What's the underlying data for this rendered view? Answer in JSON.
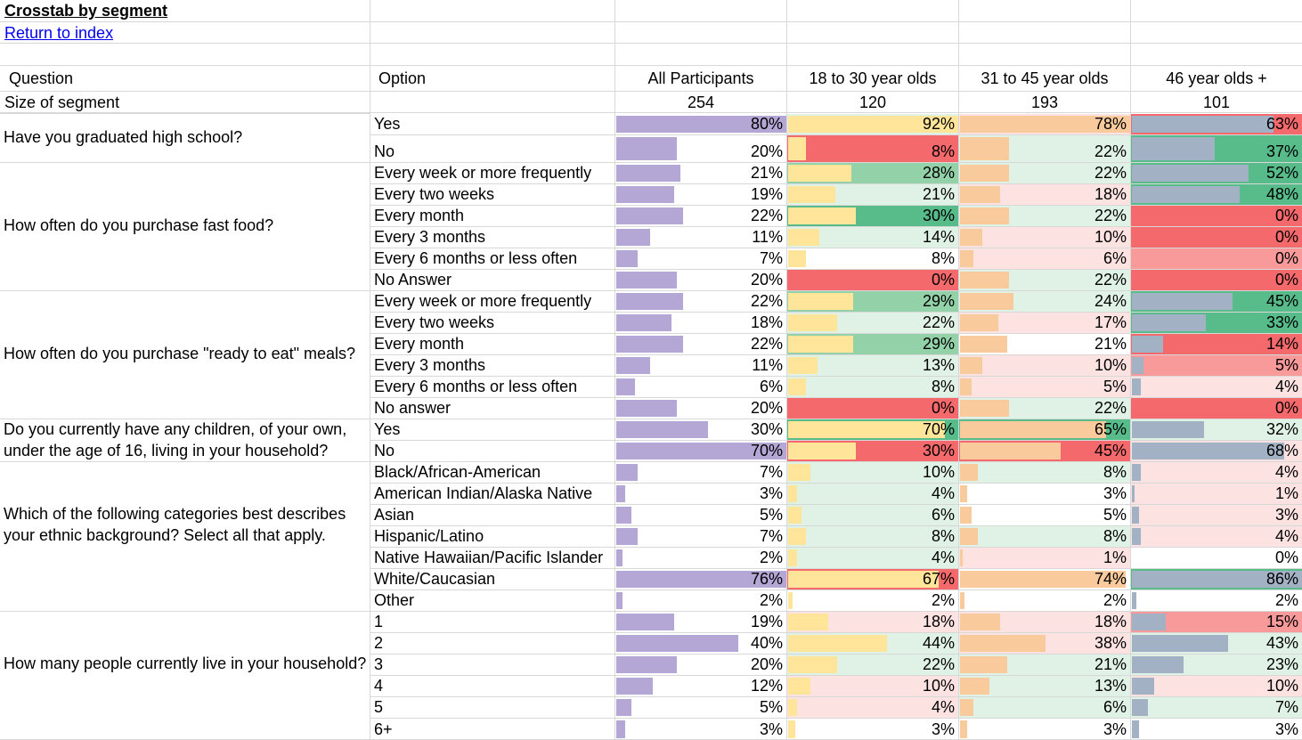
{
  "title": "Crosstab by segment",
  "link": "Return to index",
  "headers": {
    "question": "Question",
    "option": "Option",
    "segments": [
      "All Participants",
      "18 to 30 year olds",
      "31 to 45 year olds",
      "46 year olds +"
    ]
  },
  "size": {
    "label": "Size of segment",
    "values": [
      "254",
      "120",
      "193",
      "101"
    ]
  },
  "colors": {
    "bars": [
      "#b4a7d6",
      "#ffe599",
      "#f9cb9c",
      "#a2b1c4"
    ],
    "heat": {
      "green_strong": "#57bb8a",
      "green_mid": "#93d1a8",
      "green_light": "#dff2e5",
      "neutral": "#ffffff",
      "red_light": "#fde2e2",
      "red_mid": "#f99a9a",
      "red_strong": "#f4696b"
    }
  },
  "questions": [
    {
      "text": "Have you graduated high school?",
      "options": [
        {
          "label": "Yes",
          "values": [
            "80%",
            "92%",
            "78%",
            "63%"
          ],
          "pct": [
            80,
            92,
            78,
            63
          ],
          "heat": [
            "neutral",
            "green_light",
            "red_light",
            "red_strong"
          ]
        },
        {
          "label": "No",
          "values": [
            "20%",
            "8%",
            "22%",
            "37%"
          ],
          "pct": [
            20,
            8,
            22,
            37
          ],
          "heat": [
            "neutral",
            "red_strong",
            "green_light",
            "green_strong"
          ]
        }
      ]
    },
    {
      "text": "How often do you purchase fast food?",
      "options": [
        {
          "label": "Every week or more frequently",
          "values": [
            "21%",
            "28%",
            "22%",
            "52%"
          ],
          "pct": [
            21,
            28,
            22,
            52
          ],
          "heat": [
            "neutral",
            "green_mid",
            "green_light",
            "green_strong"
          ]
        },
        {
          "label": "Every two weeks",
          "values": [
            "19%",
            "21%",
            "18%",
            "48%"
          ],
          "pct": [
            19,
            21,
            18,
            48
          ],
          "heat": [
            "neutral",
            "green_light",
            "red_light",
            "green_strong"
          ]
        },
        {
          "label": "Every month",
          "values": [
            "22%",
            "30%",
            "22%",
            "0%"
          ],
          "pct": [
            22,
            30,
            22,
            0
          ],
          "heat": [
            "neutral",
            "green_strong",
            "green_light",
            "red_strong"
          ]
        },
        {
          "label": "Every 3 months",
          "values": [
            "11%",
            "14%",
            "10%",
            "0%"
          ],
          "pct": [
            11,
            14,
            10,
            0
          ],
          "heat": [
            "neutral",
            "green_light",
            "red_light",
            "red_strong"
          ]
        },
        {
          "label": "Every 6 months or less often",
          "values": [
            "7%",
            "8%",
            "6%",
            "0%"
          ],
          "pct": [
            7,
            8,
            6,
            0
          ],
          "heat": [
            "neutral",
            "neutral",
            "red_light",
            "red_mid"
          ]
        },
        {
          "label": "No Answer",
          "values": [
            "20%",
            "0%",
            "22%",
            "0%"
          ],
          "pct": [
            20,
            0,
            22,
            0
          ],
          "heat": [
            "neutral",
            "red_strong",
            "green_light",
            "red_strong"
          ]
        }
      ]
    },
    {
      "text": "How often do you purchase \"ready to eat\" meals?",
      "options": [
        {
          "label": "Every week or more frequently",
          "values": [
            "22%",
            "29%",
            "24%",
            "45%"
          ],
          "pct": [
            22,
            29,
            24,
            45
          ],
          "heat": [
            "neutral",
            "green_mid",
            "green_light",
            "green_strong"
          ]
        },
        {
          "label": "Every two weeks",
          "values": [
            "18%",
            "22%",
            "17%",
            "33%"
          ],
          "pct": [
            18,
            22,
            17,
            33
          ],
          "heat": [
            "neutral",
            "green_light",
            "red_light",
            "green_strong"
          ]
        },
        {
          "label": "Every month",
          "values": [
            "22%",
            "29%",
            "21%",
            "14%"
          ],
          "pct": [
            22,
            29,
            21,
            14
          ],
          "heat": [
            "neutral",
            "green_mid",
            "neutral",
            "red_strong"
          ]
        },
        {
          "label": "Every 3 months",
          "values": [
            "11%",
            "13%",
            "10%",
            "5%"
          ],
          "pct": [
            11,
            13,
            10,
            5
          ],
          "heat": [
            "neutral",
            "green_light",
            "red_light",
            "red_mid"
          ]
        },
        {
          "label": "Every 6 months or less often",
          "values": [
            "6%",
            "8%",
            "5%",
            "4%"
          ],
          "pct": [
            6,
            8,
            5,
            4
          ],
          "heat": [
            "neutral",
            "green_light",
            "red_light",
            "red_light"
          ]
        },
        {
          "label": "No answer",
          "values": [
            "20%",
            "0%",
            "22%",
            "0%"
          ],
          "pct": [
            20,
            0,
            22,
            0
          ],
          "heat": [
            "neutral",
            "red_strong",
            "green_light",
            "red_strong"
          ]
        }
      ]
    },
    {
      "text": "Do you currently have any children, of your own, under the age of 16, living in your household?",
      "options": [
        {
          "label": "Yes",
          "values": [
            "30%",
            "70%",
            "65%",
            "32%"
          ],
          "pct": [
            30,
            70,
            65,
            32
          ],
          "heat": [
            "neutral",
            "green_strong",
            "green_strong",
            "green_light"
          ]
        },
        {
          "label": "No",
          "values": [
            "70%",
            "30%",
            "45%",
            "68%"
          ],
          "pct": [
            70,
            30,
            45,
            68
          ],
          "heat": [
            "neutral",
            "red_strong",
            "red_strong",
            "red_light"
          ]
        }
      ]
    },
    {
      "text": "Which of the following categories best describes your ethnic background? Select all that apply.",
      "options": [
        {
          "label": "Black/African-American",
          "values": [
            "7%",
            "10%",
            "8%",
            "4%"
          ],
          "pct": [
            7,
            10,
            8,
            4
          ],
          "heat": [
            "neutral",
            "green_light",
            "green_light",
            "red_light"
          ]
        },
        {
          "label": "American Indian/Alaska Native",
          "values": [
            "3%",
            "4%",
            "3%",
            "1%"
          ],
          "pct": [
            3,
            4,
            3,
            1
          ],
          "heat": [
            "neutral",
            "green_light",
            "neutral",
            "red_light"
          ]
        },
        {
          "label": "Asian",
          "values": [
            "5%",
            "6%",
            "5%",
            "3%"
          ],
          "pct": [
            5,
            6,
            5,
            3
          ],
          "heat": [
            "neutral",
            "green_light",
            "neutral",
            "red_light"
          ]
        },
        {
          "label": "Hispanic/Latino",
          "values": [
            "7%",
            "8%",
            "8%",
            "4%"
          ],
          "pct": [
            7,
            8,
            8,
            4
          ],
          "heat": [
            "neutral",
            "green_light",
            "green_light",
            "red_light"
          ]
        },
        {
          "label": "Native Hawaiian/Pacific Islander",
          "values": [
            "2%",
            "4%",
            "1%",
            "0%"
          ],
          "pct": [
            2,
            4,
            1,
            0
          ],
          "heat": [
            "neutral",
            "green_light",
            "red_light",
            "neutral"
          ]
        },
        {
          "label": "White/Caucasian",
          "values": [
            "76%",
            "67%",
            "74%",
            "86%"
          ],
          "pct": [
            76,
            67,
            74,
            86
          ],
          "heat": [
            "neutral",
            "red_strong",
            "neutral",
            "green_strong"
          ]
        },
        {
          "label": "Other",
          "values": [
            "2%",
            "2%",
            "2%",
            "2%"
          ],
          "pct": [
            2,
            2,
            2,
            2
          ],
          "heat": [
            "neutral",
            "neutral",
            "neutral",
            "neutral"
          ]
        }
      ]
    },
    {
      "text": "How many people currently live in your household?",
      "options": [
        {
          "label": "1",
          "values": [
            "19%",
            "18%",
            "18%",
            "15%"
          ],
          "pct": [
            19,
            18,
            18,
            15
          ],
          "heat": [
            "neutral",
            "red_light",
            "red_light",
            "red_mid"
          ]
        },
        {
          "label": "2",
          "values": [
            "40%",
            "44%",
            "38%",
            "43%"
          ],
          "pct": [
            40,
            44,
            38,
            43
          ],
          "heat": [
            "neutral",
            "green_light",
            "red_light",
            "green_light"
          ]
        },
        {
          "label": "3",
          "values": [
            "20%",
            "22%",
            "21%",
            "23%"
          ],
          "pct": [
            20,
            22,
            21,
            23
          ],
          "heat": [
            "neutral",
            "green_light",
            "green_light",
            "green_light"
          ]
        },
        {
          "label": "4",
          "values": [
            "12%",
            "10%",
            "13%",
            "10%"
          ],
          "pct": [
            12,
            10,
            13,
            10
          ],
          "heat": [
            "neutral",
            "red_light",
            "green_light",
            "red_light"
          ]
        },
        {
          "label": "5",
          "values": [
            "5%",
            "4%",
            "6%",
            "7%"
          ],
          "pct": [
            5,
            4,
            6,
            7
          ],
          "heat": [
            "neutral",
            "red_light",
            "green_light",
            "green_light"
          ]
        },
        {
          "label": "6+",
          "values": [
            "3%",
            "3%",
            "3%",
            "3%"
          ],
          "pct": [
            3,
            3,
            3,
            3
          ],
          "heat": [
            "neutral",
            "neutral",
            "neutral",
            "neutral"
          ]
        }
      ]
    }
  ]
}
